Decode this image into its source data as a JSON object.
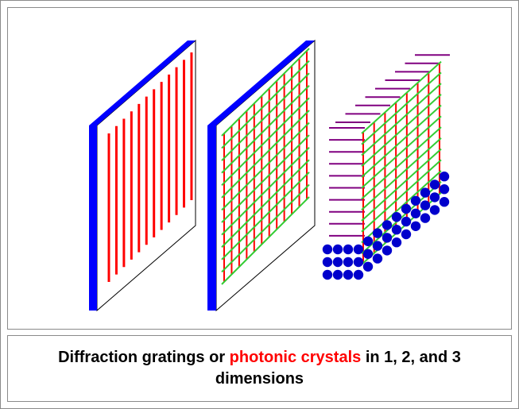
{
  "caption": {
    "part1": "Diffraction gratings or ",
    "highlight": "photonic crystals",
    "part2": " in 1, 2, and 3 dimensions"
  },
  "colors": {
    "edge": "#0000ff",
    "lines_1d": "#ff0000",
    "grid_vertical": "#ff0000",
    "grid_horizontal": "#33cc33",
    "rods_3d": "#800080",
    "spheres": "#0000cc",
    "caption_highlight": "#ff0000"
  },
  "panels": [
    {
      "dimension": 1,
      "content": "parallel-lines",
      "line_count": 12
    },
    {
      "dimension": 2,
      "content": "square-grid",
      "rows": 13,
      "cols": 12
    },
    {
      "dimension": 3,
      "content": "grid-rods-spheres"
    }
  ]
}
